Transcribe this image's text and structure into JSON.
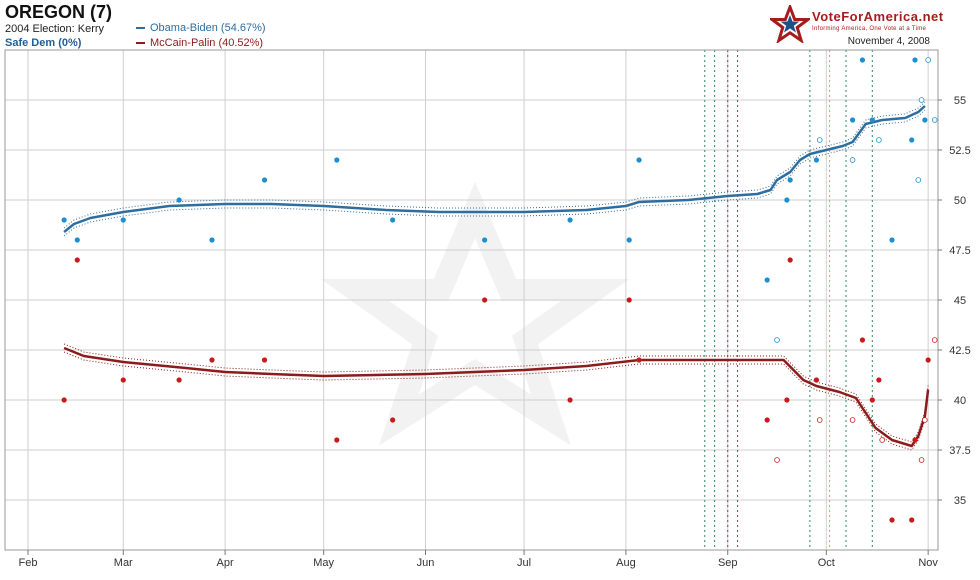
{
  "header": {
    "title": "OREGON (7)",
    "election_2004": "2004 Election: Kerry",
    "status": "Safe Dem (0%)",
    "legend_obama": "Obama-Biden (54.67%)",
    "legend_mccain": "McCain-Palin (40.52%)",
    "date": "November 4, 2008",
    "logo_text": "VoteForAmerica.net",
    "logo_tagline": "Informing America, One Vote at a Time"
  },
  "colors": {
    "obama": "#2f6d9e",
    "obama_point": "#1b8fcf",
    "mccain": "#8b1c1c",
    "mccain_point": "#c81a1a",
    "grid": "#cfcfcf"
  },
  "chart_data": {
    "type": "line",
    "x_axis": {
      "ticks": [
        "Feb",
        "Mar",
        "Apr",
        "May",
        "Jun",
        "Jul",
        "Aug",
        "Sep",
        "Oct",
        "Nov"
      ],
      "range": [
        "2008-01-25",
        "2008-11-04"
      ]
    },
    "y_axis": {
      "ticks": [
        35,
        37.5,
        40,
        42.5,
        45,
        47.5,
        50,
        52.5,
        55
      ],
      "range": [
        32.5,
        57.5
      ],
      "position": "right"
    },
    "grid": true,
    "vertical_markers": [
      {
        "date": "2008-08-25",
        "color": "#2e8b57"
      },
      {
        "date": "2008-08-28",
        "color": "#2e8b57"
      },
      {
        "date": "2008-09-01",
        "color": "#a0304a"
      },
      {
        "date": "2008-09-04",
        "color": "#a0304a"
      },
      {
        "date": "2008-09-26",
        "color": "#2e8b57"
      },
      {
        "date": "2008-10-02",
        "color": "#e0a030"
      },
      {
        "date": "2008-10-07",
        "color": "#2e8b57"
      },
      {
        "date": "2008-10-15",
        "color": "#2e8b57"
      }
    ],
    "series": [
      {
        "name": "Obama-Biden",
        "trend": [
          [
            "2008-02-12",
            48.4
          ],
          [
            "2008-02-15",
            48.8
          ],
          [
            "2008-02-20",
            49.1
          ],
          [
            "2008-03-01",
            49.4
          ],
          [
            "2008-03-15",
            49.7
          ],
          [
            "2008-04-01",
            49.8
          ],
          [
            "2008-04-15",
            49.8
          ],
          [
            "2008-05-01",
            49.7
          ],
          [
            "2008-05-20",
            49.5
          ],
          [
            "2008-06-05",
            49.4
          ],
          [
            "2008-07-01",
            49.4
          ],
          [
            "2008-07-20",
            49.5
          ],
          [
            "2008-08-01",
            49.7
          ],
          [
            "2008-08-05",
            49.9
          ],
          [
            "2008-08-20",
            50.0
          ],
          [
            "2008-09-01",
            50.2
          ],
          [
            "2008-09-10",
            50.3
          ],
          [
            "2008-09-14",
            50.5
          ],
          [
            "2008-09-16",
            51.0
          ],
          [
            "2008-09-20",
            51.4
          ],
          [
            "2008-09-23",
            52.0
          ],
          [
            "2008-09-26",
            52.3
          ],
          [
            "2008-10-01",
            52.5
          ],
          [
            "2008-10-06",
            52.7
          ],
          [
            "2008-10-09",
            52.9
          ],
          [
            "2008-10-13",
            53.8
          ],
          [
            "2008-10-18",
            54.0
          ],
          [
            "2008-10-25",
            54.1
          ],
          [
            "2008-10-29",
            54.4
          ],
          [
            "2008-10-31",
            54.7
          ]
        ],
        "polls": [
          [
            [
              "2008-02-12",
              49
            ],
            [
              "2008-02-16",
              48
            ],
            [
              "2008-03-01",
              49
            ],
            [
              "2008-03-18",
              50
            ],
            [
              "2008-03-28",
              48
            ],
            [
              "2008-04-13",
              51
            ],
            [
              "2008-05-05",
              52
            ],
            [
              "2008-05-22",
              49
            ],
            [
              "2008-06-19",
              48
            ],
            [
              "2008-07-15",
              49
            ],
            [
              "2008-08-02",
              48
            ],
            [
              "2008-08-05",
              52
            ],
            [
              "2008-09-13",
              46
            ],
            [
              "2008-09-19",
              50
            ],
            [
              "2008-09-20",
              51
            ],
            [
              "2008-09-28",
              52
            ],
            [
              "2008-10-09",
              54
            ],
            [
              "2008-10-12",
              57
            ],
            [
              "2008-10-15",
              54
            ],
            [
              "2008-10-21",
              48
            ],
            [
              "2008-10-27",
              53
            ],
            [
              "2008-10-28",
              57
            ],
            [
              "2008-10-31",
              54
            ]
          ],
          [
            [
              "2008-09-16",
              43
            ],
            [
              "2008-09-29",
              53
            ],
            [
              "2008-10-09",
              52
            ],
            [
              "2008-10-17",
              53
            ],
            [
              "2008-10-29",
              51
            ],
            [
              "2008-10-30",
              55
            ],
            [
              "2008-11-01",
              57
            ],
            [
              "2008-11-03",
              54
            ]
          ]
        ]
      },
      {
        "name": "McCain-Palin",
        "trend": [
          [
            "2008-02-12",
            42.6
          ],
          [
            "2008-02-18",
            42.2
          ],
          [
            "2008-03-01",
            41.9
          ],
          [
            "2008-03-20",
            41.6
          ],
          [
            "2008-04-01",
            41.4
          ],
          [
            "2008-04-15",
            41.3
          ],
          [
            "2008-05-01",
            41.2
          ],
          [
            "2008-06-01",
            41.3
          ],
          [
            "2008-07-01",
            41.5
          ],
          [
            "2008-07-20",
            41.7
          ],
          [
            "2008-08-05",
            42.0
          ],
          [
            "2008-08-30",
            42.0
          ],
          [
            "2008-09-15",
            42.0
          ],
          [
            "2008-09-18",
            42.0
          ],
          [
            "2008-09-21",
            41.5
          ],
          [
            "2008-09-24",
            41.0
          ],
          [
            "2008-09-28",
            40.7
          ],
          [
            "2008-10-05",
            40.4
          ],
          [
            "2008-10-10",
            40.1
          ],
          [
            "2008-10-16",
            38.6
          ],
          [
            "2008-10-21",
            38.0
          ],
          [
            "2008-10-27",
            37.7
          ],
          [
            "2008-10-29",
            38.2
          ],
          [
            "2008-10-31",
            39.2
          ],
          [
            "2008-11-01",
            40.52
          ]
        ],
        "polls": [
          [
            [
              "2008-02-12",
              40
            ],
            [
              "2008-02-16",
              47
            ],
            [
              "2008-03-01",
              41
            ],
            [
              "2008-03-18",
              41
            ],
            [
              "2008-03-28",
              42
            ],
            [
              "2008-04-13",
              42
            ],
            [
              "2008-05-05",
              38
            ],
            [
              "2008-05-22",
              39
            ],
            [
              "2008-06-19",
              45
            ],
            [
              "2008-07-15",
              40
            ],
            [
              "2008-08-02",
              45
            ],
            [
              "2008-08-05",
              42
            ],
            [
              "2008-09-13",
              39
            ],
            [
              "2008-09-19",
              40
            ],
            [
              "2008-09-20",
              47
            ],
            [
              "2008-09-28",
              41
            ],
            [
              "2008-10-12",
              43
            ],
            [
              "2008-10-15",
              40
            ],
            [
              "2008-10-17",
              41
            ],
            [
              "2008-10-21",
              34
            ],
            [
              "2008-10-27",
              34
            ],
            [
              "2008-10-28",
              38
            ],
            [
              "2008-11-01",
              42
            ]
          ],
          [
            [
              "2008-09-16",
              37
            ],
            [
              "2008-09-29",
              39
            ],
            [
              "2008-10-09",
              39
            ],
            [
              "2008-10-18",
              38
            ],
            [
              "2008-10-30",
              37
            ],
            [
              "2008-10-31",
              39
            ],
            [
              "2008-11-03",
              43
            ]
          ]
        ]
      }
    ]
  }
}
